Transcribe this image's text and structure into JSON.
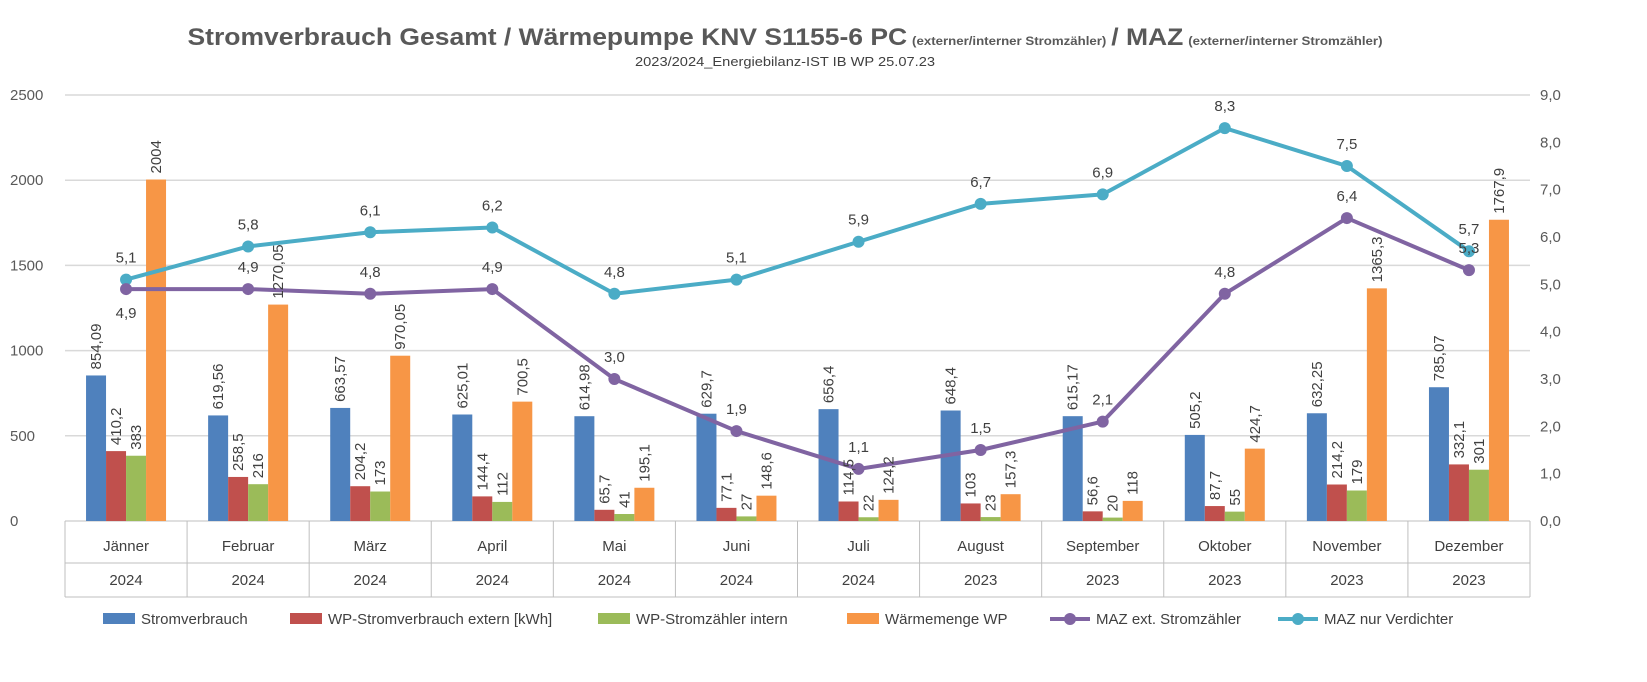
{
  "chart_data": {
    "type": "bar",
    "title": "Stromverbrauch Gesamt / Wärmepumpe KNV S1155-6 PC",
    "title_note1": "(externer/interner Stromzähler)",
    "title_mid": "/ MAZ",
    "title_note2": "(externer/interner Stromzähler)",
    "subtitle": "2023/2024_Energiebilanz-IST IB WP 25.07.23",
    "categories": [
      "Jänner",
      "Februar",
      "März",
      "April",
      "Mai",
      "Juni",
      "Juli",
      "August",
      "September",
      "Oktober",
      "November",
      "Dezember"
    ],
    "years": [
      "2024",
      "2024",
      "2024",
      "2024",
      "2024",
      "2024",
      "2024",
      "2023",
      "2023",
      "2023",
      "2023",
      "2023"
    ],
    "ylim": [
      0,
      2500
    ],
    "yticks": [
      0,
      500,
      1000,
      1500,
      2000,
      2500
    ],
    "y2lim": [
      0,
      9
    ],
    "y2ticks": [
      "0,0",
      "1,0",
      "2,0",
      "3,0",
      "4,0",
      "5,0",
      "6,0",
      "7,0",
      "8,0",
      "9,0"
    ],
    "grid": true,
    "legend_placement": "bottom",
    "series": [
      {
        "name": "Stromverbrauch",
        "type": "bar",
        "axis": "left",
        "color": "#4F81BD",
        "values": [
          854.09,
          619.56,
          663.57,
          625.01,
          614.98,
          629.7,
          656.4,
          648.4,
          615.17,
          505.2,
          632.25,
          785.07
        ]
      },
      {
        "name": "WP-Stromverbrauch extern [kWh]",
        "type": "bar",
        "axis": "left",
        "color": "#C0504D",
        "values": [
          410.2,
          258.5,
          204.2,
          144.4,
          65.7,
          77.1,
          114.5,
          103,
          56.6,
          87.7,
          214.2,
          332.1
        ]
      },
      {
        "name": "WP-Stromzähler intern",
        "type": "bar",
        "axis": "left",
        "color": "#9BBB59",
        "values": [
          383,
          216,
          173,
          112,
          41,
          27,
          22,
          23,
          20,
          55,
          179,
          301
        ]
      },
      {
        "name": "Wärmemenge WP",
        "type": "bar",
        "axis": "left",
        "color": "#F79646",
        "values": [
          2004,
          1270.05,
          970.05,
          700.5,
          195.1,
          148.6,
          124.2,
          157.3,
          118,
          424.7,
          1365.3,
          1767.9
        ]
      },
      {
        "name": "MAZ ext. Stromzähler",
        "type": "line",
        "axis": "right",
        "color": "#8064A2",
        "values": [
          4.9,
          4.9,
          4.8,
          4.9,
          3.0,
          1.9,
          1.1,
          1.5,
          2.1,
          4.8,
          6.4,
          5.3
        ]
      },
      {
        "name": "MAZ nur Verdichter",
        "type": "line",
        "axis": "right",
        "color": "#4BACC6",
        "values": [
          5.1,
          5.8,
          6.1,
          6.2,
          4.8,
          5.1,
          5.9,
          6.7,
          6.9,
          8.3,
          7.5,
          5.7
        ]
      }
    ]
  }
}
